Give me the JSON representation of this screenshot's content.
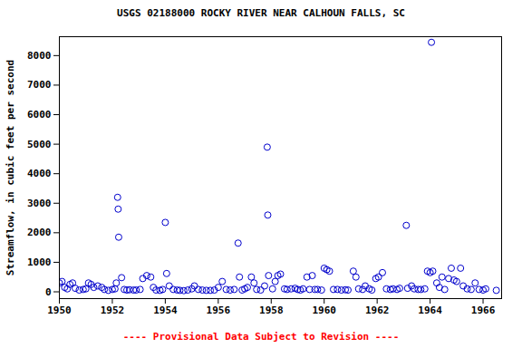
{
  "chart_data": {
    "type": "scatter",
    "title": "USGS 02188000 ROCKY RIVER NEAR CALHOUN FALLS, SC",
    "caption": "---- Provisional Data Subject to Revision ----",
    "ylabel": "Streamflow, in cubic feet per second",
    "x": [
      1950.0,
      1950.1,
      1950.2,
      1950.3,
      1950.4,
      1950.5,
      1950.6,
      1950.75,
      1950.9,
      1951.0,
      1951.1,
      1951.2,
      1951.3,
      1951.45,
      1951.6,
      1951.7,
      1951.85,
      1952.0,
      1952.1,
      1952.15,
      1952.2,
      1952.22,
      1952.24,
      1952.35,
      1952.45,
      1952.55,
      1952.65,
      1952.8,
      1952.9,
      1953.05,
      1953.15,
      1953.3,
      1953.45,
      1953.55,
      1953.65,
      1953.8,
      1953.9,
      1954.0,
      1954.05,
      1954.15,
      1954.3,
      1954.45,
      1954.55,
      1954.7,
      1954.85,
      1955.0,
      1955.1,
      1955.25,
      1955.4,
      1955.55,
      1955.7,
      1955.85,
      1956.0,
      1956.15,
      1956.3,
      1956.45,
      1956.6,
      1956.75,
      1956.8,
      1956.9,
      1957.0,
      1957.1,
      1957.25,
      1957.35,
      1957.45,
      1957.6,
      1957.75,
      1957.85,
      1957.87,
      1957.9,
      1958.05,
      1958.15,
      1958.25,
      1958.35,
      1958.5,
      1958.6,
      1958.75,
      1958.9,
      1959.0,
      1959.1,
      1959.2,
      1959.35,
      1959.45,
      1959.55,
      1959.65,
      1959.75,
      1959.9,
      1960.0,
      1960.1,
      1960.2,
      1960.35,
      1960.5,
      1960.65,
      1960.8,
      1960.9,
      1961.1,
      1961.2,
      1961.3,
      1961.45,
      1961.55,
      1961.7,
      1961.8,
      1961.95,
      1962.05,
      1962.2,
      1962.35,
      1962.5,
      1962.6,
      1962.75,
      1962.85,
      1963.1,
      1963.15,
      1963.3,
      1963.4,
      1963.55,
      1963.65,
      1963.8,
      1963.9,
      1964.0,
      1964.05,
      1964.1,
      1964.25,
      1964.35,
      1964.45,
      1964.55,
      1964.7,
      1964.8,
      1964.9,
      1965.0,
      1965.15,
      1965.25,
      1965.4,
      1965.55,
      1965.7,
      1965.85,
      1966.0,
      1966.1,
      1966.5
    ],
    "values": [
      300,
      350,
      150,
      100,
      250,
      300,
      120,
      60,
      80,
      100,
      300,
      250,
      150,
      200,
      150,
      80,
      50,
      80,
      100,
      300,
      3200,
      2800,
      1850,
      480,
      80,
      60,
      70,
      60,
      60,
      80,
      450,
      550,
      500,
      150,
      60,
      50,
      80,
      2350,
      620,
      200,
      80,
      60,
      50,
      40,
      60,
      100,
      200,
      80,
      60,
      50,
      50,
      60,
      150,
      350,
      80,
      60,
      80,
      1650,
      500,
      60,
      100,
      150,
      500,
      300,
      80,
      60,
      200,
      4900,
      2600,
      550,
      100,
      350,
      550,
      600,
      100,
      80,
      100,
      120,
      80,
      60,
      100,
      500,
      80,
      550,
      80,
      80,
      60,
      800,
      750,
      700,
      80,
      80,
      60,
      70,
      60,
      700,
      500,
      100,
      80,
      200,
      100,
      60,
      450,
      500,
      650,
      100,
      80,
      100,
      80,
      120,
      2250,
      120,
      200,
      100,
      80,
      80,
      100,
      700,
      650,
      8450,
      700,
      300,
      150,
      500,
      80,
      450,
      800,
      400,
      350,
      800,
      200,
      100,
      80,
      300,
      80,
      60,
      100,
      50
    ],
    "color": "#0000cc",
    "marker": "circle",
    "grid": false,
    "xlim": [
      1950,
      1966.7
    ],
    "xticks": [
      1950,
      1952,
      1954,
      1956,
      1958,
      1960,
      1962,
      1964,
      1966
    ],
    "ylim": [
      -230,
      8640
    ],
    "yticks": [
      0,
      1000,
      2000,
      3000,
      4000,
      5000,
      6000,
      7000,
      8000
    ]
  }
}
